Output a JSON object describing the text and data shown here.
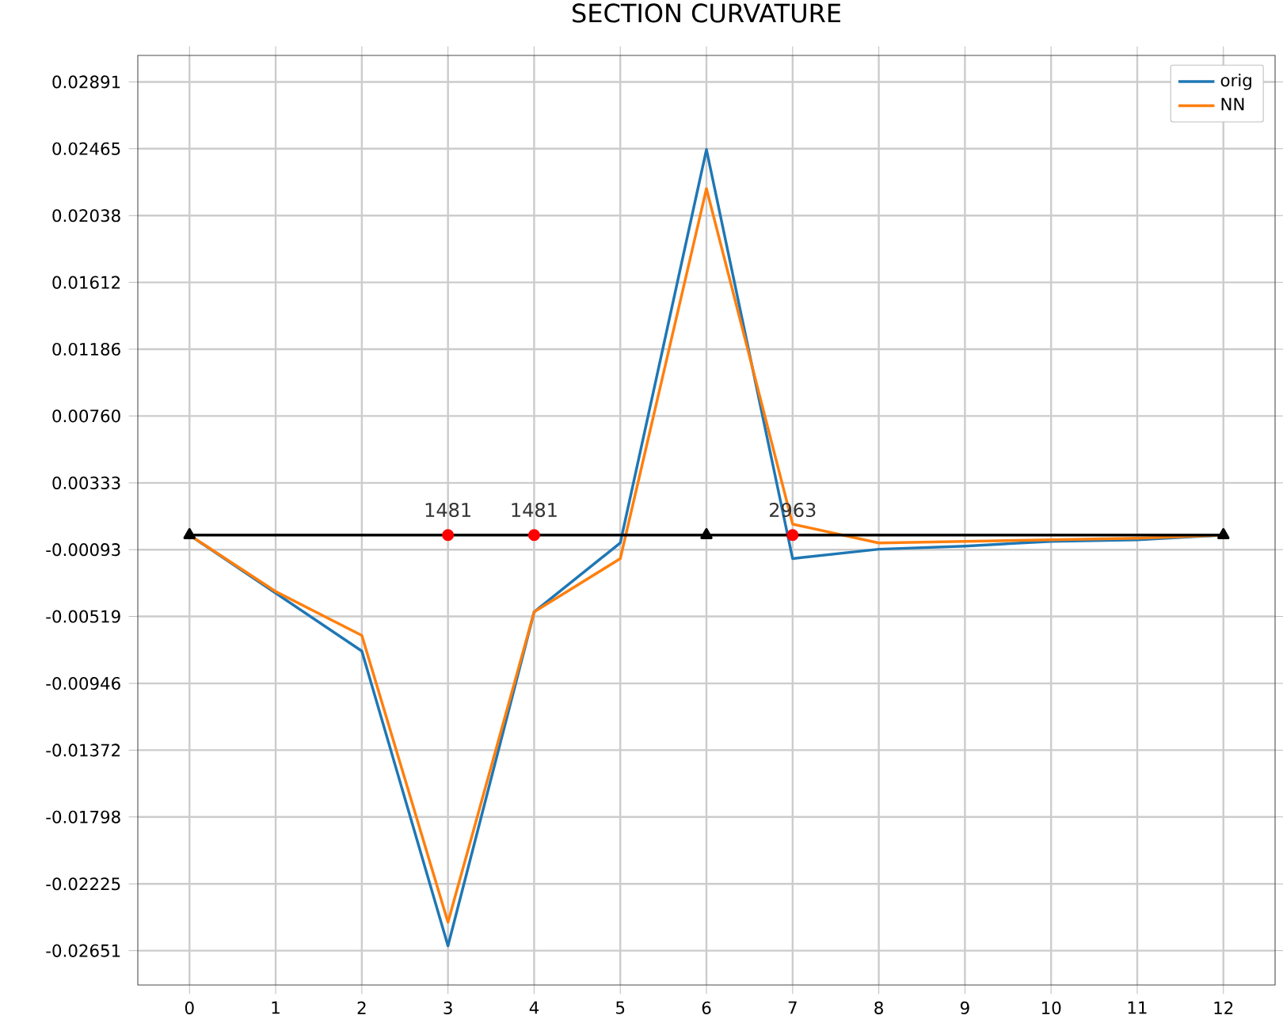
{
  "chart_data": {
    "type": "line",
    "title": "SECTION CURVATURE",
    "x": [
      0,
      1,
      2,
      3,
      4,
      5,
      6,
      7,
      8,
      9,
      10,
      11,
      12
    ],
    "xlim": [
      -0.6,
      12.6
    ],
    "xticks": [
      0,
      1,
      2,
      3,
      4,
      5,
      6,
      7,
      8,
      9,
      10,
      11,
      12
    ],
    "ylim": [
      -0.0287,
      0.0306
    ],
    "yticks": [
      -0.02651,
      -0.02225,
      -0.01798,
      -0.01372,
      -0.00946,
      -0.00519,
      -0.00093,
      0.00333,
      {
        "value": 0.0076,
        "label": "0.00760"
      },
      0.01186,
      0.01612,
      0.02038,
      0.02465,
      0.02891
    ],
    "series": [
      {
        "name": "orig",
        "color": "#1f77b4",
        "marker": "none",
        "values": [
          0,
          -0.0037,
          -0.0074,
          -0.0262,
          -0.0049,
          -0.0005,
          0.0246,
          -0.0015,
          -0.0009,
          -0.0007,
          -0.0004,
          -0.0003,
          0
        ]
      },
      {
        "name": "NN",
        "color": "#ff7f0e",
        "marker": "none",
        "values": [
          0,
          -0.0036,
          -0.0064,
          -0.0247,
          -0.0049,
          -0.0015,
          0.0221,
          0.0007,
          -0.0005,
          -0.0004,
          -0.0003,
          -0.0002,
          0
        ]
      },
      {
        "type": "line",
        "color": "#000000",
        "marker": "triangle",
        "x": [
          0,
          6,
          12
        ],
        "values": [
          0,
          0,
          0
        ]
      },
      {
        "type": "scatter",
        "color": "#ff0000",
        "marker": "circle",
        "x": [
          3,
          4,
          7
        ],
        "values": [
          0,
          0,
          0
        ]
      }
    ],
    "annotations": [
      {
        "text": "1481",
        "x": 3,
        "y": 0
      },
      {
        "text": "1481",
        "x": 4,
        "y": 0
      },
      {
        "text": "2963",
        "x": 7,
        "y": 0
      }
    ],
    "grid": true,
    "legend": "top right"
  }
}
